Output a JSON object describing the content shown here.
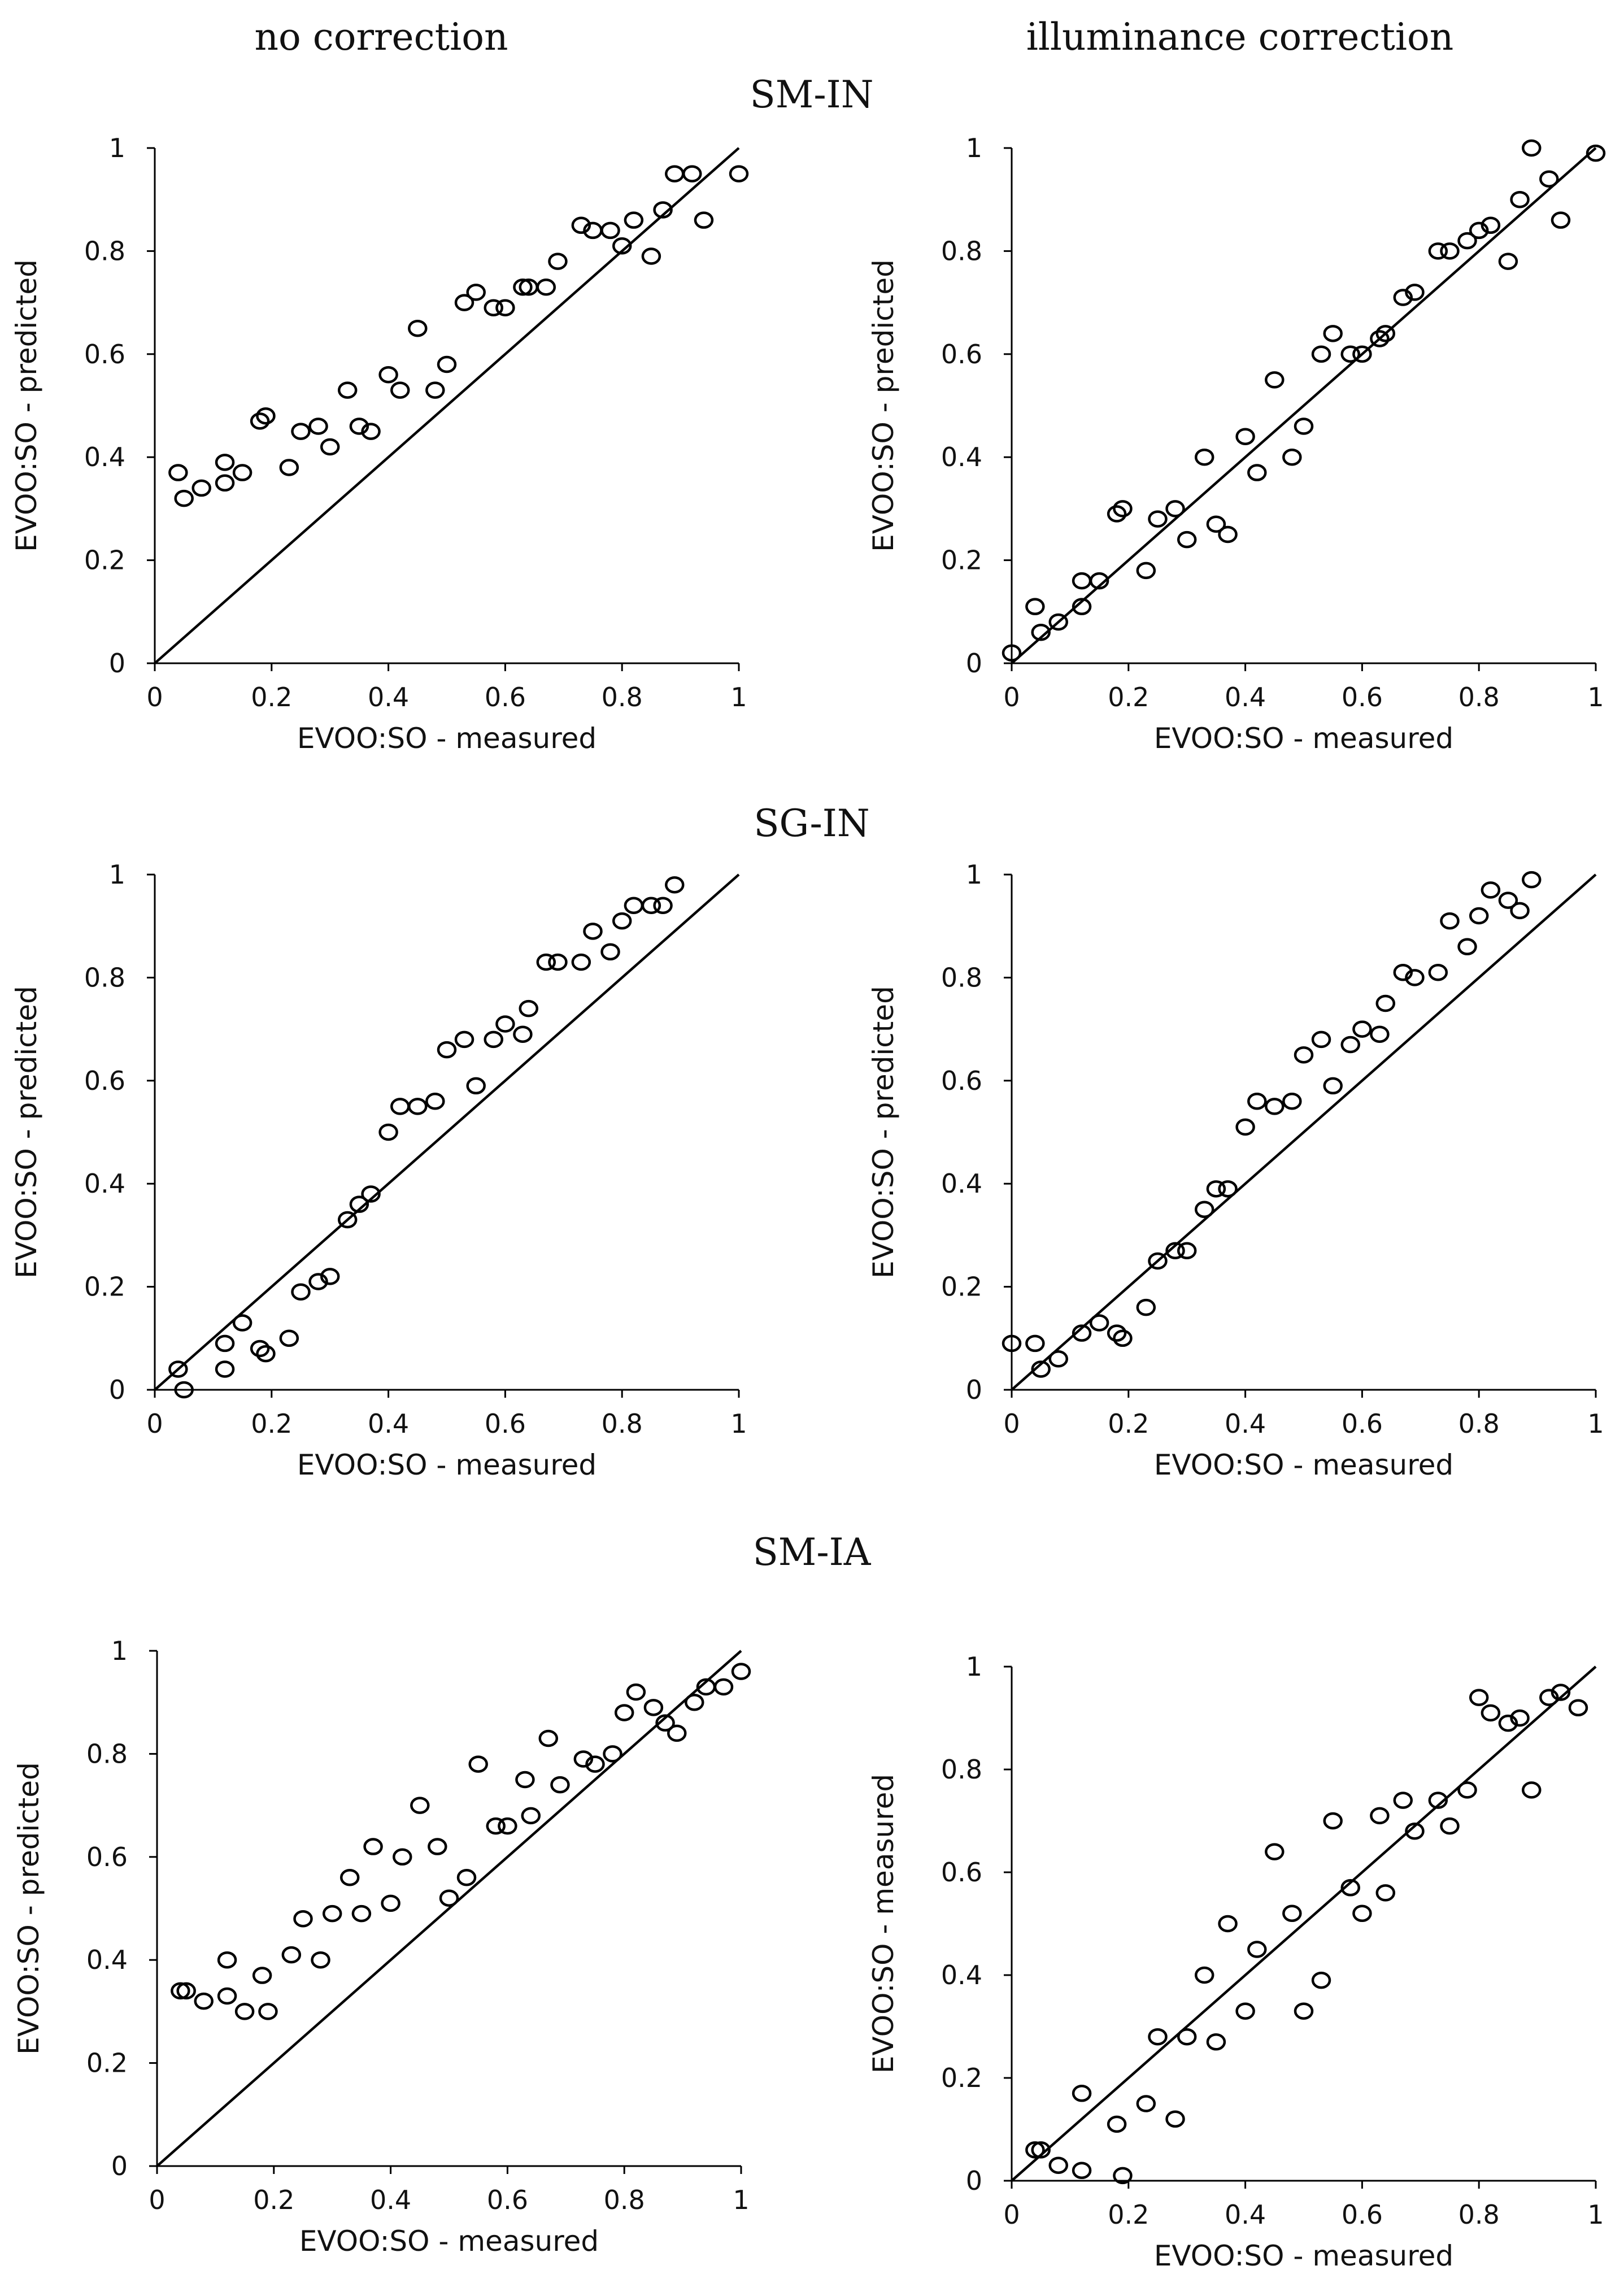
{
  "column_titles": {
    "left": "no correction",
    "right": "illuminance correction"
  },
  "group_titles": {
    "g0": "SM-IN",
    "g1": "SG-IN",
    "g2": "SM-IA"
  },
  "chart_data": [
    {
      "id": "SM-IN-no-correction",
      "type": "scatter",
      "group": "SM-IN",
      "correction": "no correction",
      "xlabel": "EVOO:SO - measured",
      "ylabel": "EVOO:SO - predicted",
      "xlim": [
        0,
        1
      ],
      "ylim": [
        0,
        1
      ],
      "xticks": [
        "0",
        "0.2",
        "0.4",
        "0.6",
        "0.8",
        "1"
      ],
      "yticks": [
        "0",
        "0.2",
        "0.4",
        "0.6",
        "0.8",
        "1"
      ],
      "reference_line": "y = x",
      "x": [
        0.04,
        0.05,
        0.08,
        0.12,
        0.12,
        0.15,
        0.18,
        0.19,
        0.23,
        0.25,
        0.28,
        0.3,
        0.33,
        0.35,
        0.37,
        0.4,
        0.42,
        0.45,
        0.48,
        0.5,
        0.53,
        0.55,
        0.58,
        0.6,
        0.63,
        0.64,
        0.67,
        0.69,
        0.73,
        0.75,
        0.78,
        0.8,
        0.82,
        0.85,
        0.87,
        0.89,
        0.92,
        0.94,
        1.0
      ],
      "y": [
        0.37,
        0.32,
        0.34,
        0.39,
        0.35,
        0.37,
        0.47,
        0.48,
        0.38,
        0.45,
        0.46,
        0.42,
        0.53,
        0.46,
        0.45,
        0.56,
        0.53,
        0.65,
        0.53,
        0.58,
        0.7,
        0.72,
        0.69,
        0.69,
        0.73,
        0.73,
        0.73,
        0.78,
        0.85,
        0.84,
        0.84,
        0.81,
        0.86,
        0.79,
        0.88,
        0.95,
        0.95,
        0.86,
        0.95
      ]
    },
    {
      "id": "SM-IN-illuminance-correction",
      "type": "scatter",
      "group": "SM-IN",
      "correction": "illuminance correction",
      "xlabel": "EVOO:SO - measured",
      "ylabel": "EVOO:SO - predicted",
      "xlim": [
        0,
        1
      ],
      "ylim": [
        0,
        1
      ],
      "xticks": [
        "0",
        "0.2",
        "0.4",
        "0.6",
        "0.8",
        "1"
      ],
      "yticks": [
        "0",
        "0.2",
        "0.4",
        "0.6",
        "0.8",
        "1"
      ],
      "reference_line": "y = x",
      "x": [
        0.0,
        0.04,
        0.05,
        0.08,
        0.12,
        0.12,
        0.15,
        0.18,
        0.19,
        0.23,
        0.25,
        0.28,
        0.3,
        0.33,
        0.35,
        0.37,
        0.4,
        0.42,
        0.45,
        0.48,
        0.5,
        0.53,
        0.55,
        0.58,
        0.6,
        0.63,
        0.64,
        0.67,
        0.69,
        0.73,
        0.75,
        0.78,
        0.8,
        0.82,
        0.85,
        0.87,
        0.89,
        0.92,
        0.94,
        1.0
      ],
      "y": [
        0.02,
        0.11,
        0.06,
        0.08,
        0.11,
        0.16,
        0.16,
        0.29,
        0.3,
        0.18,
        0.28,
        0.3,
        0.24,
        0.4,
        0.27,
        0.25,
        0.44,
        0.37,
        0.55,
        0.4,
        0.46,
        0.6,
        0.64,
        0.6,
        0.6,
        0.63,
        0.64,
        0.71,
        0.72,
        0.8,
        0.8,
        0.82,
        0.84,
        0.85,
        0.78,
        0.9,
        1.0,
        0.94,
        0.86,
        0.99
      ]
    },
    {
      "id": "SG-IN-no-correction",
      "type": "scatter",
      "group": "SG-IN",
      "correction": "no correction",
      "xlabel": "EVOO:SO - measured",
      "ylabel": "EVOO:SO - predicted",
      "xlim": [
        0,
        1
      ],
      "ylim": [
        0,
        1
      ],
      "xticks": [
        "0",
        "0.2",
        "0.4",
        "0.6",
        "0.8",
        "1"
      ],
      "yticks": [
        "0",
        "0.2",
        "0.4",
        "0.6",
        "0.8",
        "1"
      ],
      "reference_line": "y = x",
      "x": [
        0.04,
        0.05,
        0.12,
        0.12,
        0.15,
        0.18,
        0.19,
        0.23,
        0.25,
        0.28,
        0.3,
        0.33,
        0.35,
        0.37,
        0.4,
        0.42,
        0.45,
        0.48,
        0.5,
        0.53,
        0.55,
        0.58,
        0.6,
        0.63,
        0.64,
        0.67,
        0.69,
        0.73,
        0.75,
        0.78,
        0.8,
        0.82,
        0.85,
        0.87,
        0.89
      ],
      "y": [
        0.04,
        0.0,
        0.09,
        0.04,
        0.13,
        0.08,
        0.07,
        0.1,
        0.19,
        0.21,
        0.22,
        0.33,
        0.36,
        0.38,
        0.5,
        0.55,
        0.55,
        0.56,
        0.66,
        0.68,
        0.59,
        0.68,
        0.71,
        0.69,
        0.74,
        0.83,
        0.83,
        0.83,
        0.89,
        0.85,
        0.91,
        0.94,
        0.94,
        0.94,
        0.98
      ]
    },
    {
      "id": "SG-IN-illuminance-correction",
      "type": "scatter",
      "group": "SG-IN",
      "correction": "illuminance correction",
      "xlabel": "EVOO:SO - measured",
      "ylabel": "EVOO:SO - predicted",
      "xlim": [
        0,
        1
      ],
      "ylim": [
        0,
        1
      ],
      "xticks": [
        "0",
        "0.2",
        "0.4",
        "0.6",
        "0.8",
        "1"
      ],
      "yticks": [
        "0",
        "0.2",
        "0.4",
        "0.6",
        "0.8",
        "1"
      ],
      "reference_line": "y = x",
      "x": [
        0.0,
        0.04,
        0.05,
        0.08,
        0.12,
        0.15,
        0.18,
        0.19,
        0.23,
        0.25,
        0.28,
        0.3,
        0.33,
        0.35,
        0.37,
        0.4,
        0.42,
        0.45,
        0.48,
        0.5,
        0.53,
        0.55,
        0.58,
        0.6,
        0.63,
        0.64,
        0.67,
        0.69,
        0.73,
        0.75,
        0.78,
        0.8,
        0.82,
        0.85,
        0.87,
        0.89
      ],
      "y": [
        0.09,
        0.09,
        0.04,
        0.06,
        0.11,
        0.13,
        0.11,
        0.1,
        0.16,
        0.25,
        0.27,
        0.27,
        0.35,
        0.39,
        0.39,
        0.51,
        0.56,
        0.55,
        0.56,
        0.65,
        0.68,
        0.59,
        0.67,
        0.7,
        0.69,
        0.75,
        0.81,
        0.8,
        0.81,
        0.91,
        0.86,
        0.92,
        0.97,
        0.95,
        0.93,
        0.99
      ]
    },
    {
      "id": "SM-IA-no-correction",
      "type": "scatter",
      "group": "SM-IA",
      "correction": "no correction",
      "xlabel": "EVOO:SO - measured",
      "ylabel": "EVOO:SO - predicted",
      "xlim": [
        0,
        1
      ],
      "ylim": [
        0,
        1
      ],
      "xticks": [
        "0",
        "0.2",
        "0.4",
        "0.6",
        "0.8",
        "1"
      ],
      "yticks": [
        "0",
        "0.2",
        "0.4",
        "0.6",
        "0.8",
        "1"
      ],
      "reference_line": "y = x",
      "x": [
        0.04,
        0.05,
        0.08,
        0.12,
        0.12,
        0.15,
        0.18,
        0.19,
        0.23,
        0.25,
        0.28,
        0.3,
        0.33,
        0.35,
        0.37,
        0.4,
        0.42,
        0.45,
        0.48,
        0.5,
        0.53,
        0.55,
        0.58,
        0.6,
        0.63,
        0.64,
        0.67,
        0.69,
        0.73,
        0.75,
        0.78,
        0.8,
        0.82,
        0.85,
        0.87,
        0.89,
        0.92,
        0.94,
        0.97,
        1.0
      ],
      "y": [
        0.34,
        0.34,
        0.32,
        0.4,
        0.33,
        0.3,
        0.37,
        0.3,
        0.41,
        0.48,
        0.4,
        0.49,
        0.56,
        0.49,
        0.62,
        0.51,
        0.6,
        0.7,
        0.62,
        0.52,
        0.56,
        0.78,
        0.66,
        0.66,
        0.75,
        0.68,
        0.83,
        0.74,
        0.79,
        0.78,
        0.8,
        0.88,
        0.92,
        0.89,
        0.86,
        0.84,
        0.9,
        0.93,
        0.93,
        0.96
      ]
    },
    {
      "id": "SM-IA-illuminance-correction",
      "type": "scatter",
      "group": "SM-IA",
      "correction": "illuminance correction",
      "xlabel": "EVOO:SO - measured",
      "ylabel": "EVOO:SO - measured",
      "xlim": [
        0,
        1
      ],
      "ylim": [
        0,
        1
      ],
      "xticks": [
        "0",
        "0.2",
        "0.4",
        "0.6",
        "0.8",
        "1"
      ],
      "yticks": [
        "0",
        "0.2",
        "0.4",
        "0.6",
        "0.8",
        "1"
      ],
      "reference_line": "y = x",
      "x": [
        0.04,
        0.05,
        0.08,
        0.12,
        0.12,
        0.18,
        0.19,
        0.23,
        0.25,
        0.28,
        0.3,
        0.33,
        0.35,
        0.37,
        0.4,
        0.42,
        0.45,
        0.48,
        0.5,
        0.53,
        0.55,
        0.58,
        0.6,
        0.63,
        0.64,
        0.67,
        0.69,
        0.73,
        0.75,
        0.78,
        0.8,
        0.82,
        0.85,
        0.87,
        0.89,
        0.92,
        0.94,
        0.97
      ],
      "y": [
        0.06,
        0.06,
        0.03,
        0.02,
        0.17,
        0.11,
        0.01,
        0.15,
        0.28,
        0.12,
        0.28,
        0.4,
        0.27,
        0.5,
        0.33,
        0.45,
        0.64,
        0.52,
        0.33,
        0.39,
        0.7,
        0.57,
        0.52,
        0.71,
        0.56,
        0.74,
        0.68,
        0.74,
        0.69,
        0.76,
        0.94,
        0.91,
        0.89,
        0.9,
        0.76,
        0.94,
        0.95,
        0.92
      ]
    }
  ]
}
